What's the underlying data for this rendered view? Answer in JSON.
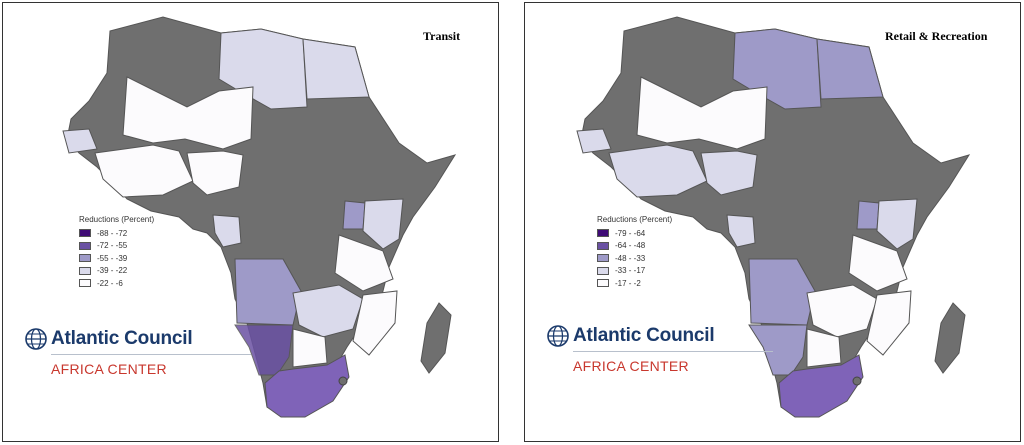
{
  "maps": [
    {
      "title": "Transit",
      "legend_title": "Reductions (Percent)",
      "legend": [
        {
          "label": "-88 - -72",
          "color": "#3f0b76"
        },
        {
          "label": "-72 - -55",
          "color": "#6a51a3"
        },
        {
          "label": "-55 - -39",
          "color": "#9e9ac8"
        },
        {
          "label": "-39 - -22",
          "color": "#dadaeb"
        },
        {
          "label": "-22 - -6",
          "color": "#fcfbfd"
        }
      ]
    },
    {
      "title": "Retail & Recreation",
      "legend_title": "Reductions (Percent)",
      "legend": [
        {
          "label": "-79 - -64",
          "color": "#3f0b76"
        },
        {
          "label": "-64 - -48",
          "color": "#6a51a3"
        },
        {
          "label": "-48 - -33",
          "color": "#9e9ac8"
        },
        {
          "label": "-33 - -17",
          "color": "#dadaeb"
        },
        {
          "label": "-17 - -2",
          "color": "#fcfbfd"
        }
      ]
    }
  ],
  "brand": {
    "name": "Atlantic Council",
    "sub": "AFRICA CENTER",
    "name_color": "#1b3a6b",
    "sub_color": "#c8372d"
  },
  "no_data_color": "#6f6f6f"
}
